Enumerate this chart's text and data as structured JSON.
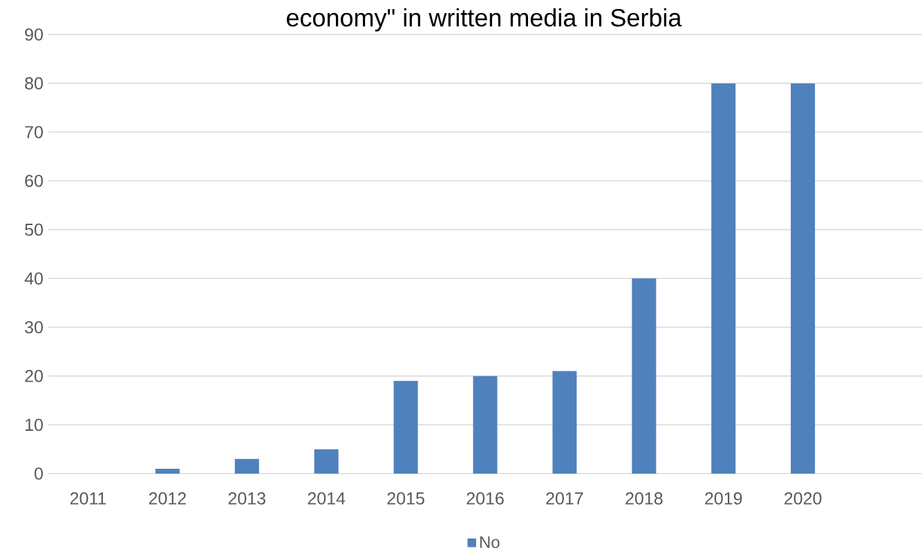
{
  "chart_data": {
    "type": "bar",
    "title": "economy\" in written media in Serbia",
    "categories": [
      "2011",
      "2012",
      "2013",
      "2014",
      "2015",
      "2016",
      "2017",
      "2018",
      "2019",
      "2020",
      null
    ],
    "series": [
      {
        "name": "No",
        "color": "#4f81bd",
        "values": [
          0,
          1,
          3,
          5,
          19,
          20,
          21,
          40,
          80,
          80,
          null
        ]
      }
    ],
    "ylim": [
      0,
      90
    ],
    "yticks": [
      0,
      10,
      20,
      30,
      40,
      50,
      60,
      70,
      80,
      90
    ],
    "grid": "y",
    "legend": "bottom"
  }
}
